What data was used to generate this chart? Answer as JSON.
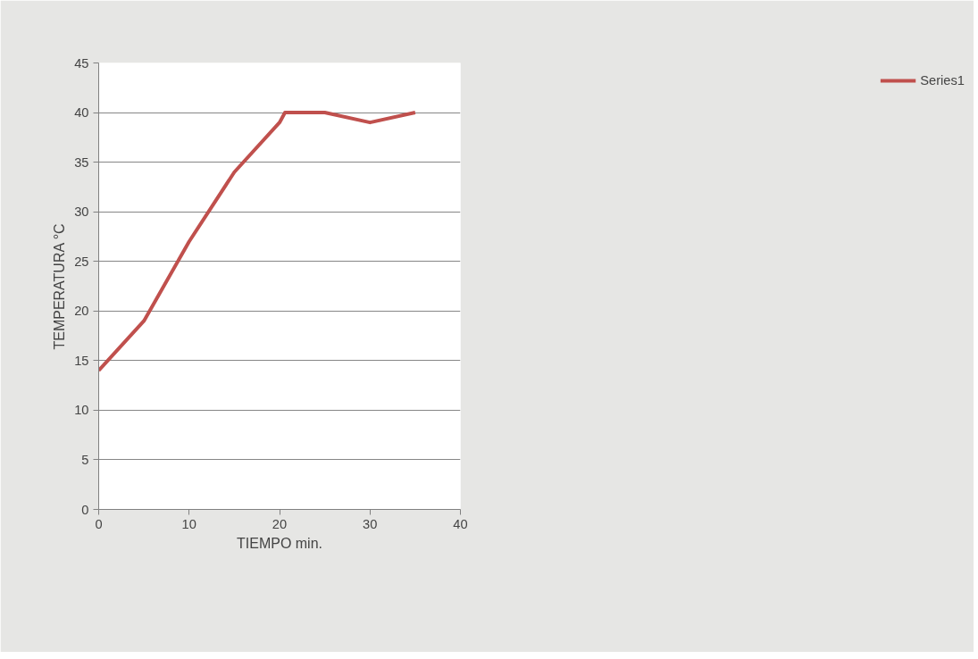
{
  "chart_data": {
    "type": "line",
    "xlabel": "TIEMPO min.",
    "ylabel": "TEMPERATURA °C",
    "series": [
      {
        "name": "Series1",
        "color": "#c0504d",
        "x": [
          0,
          5,
          10,
          15,
          20,
          20.6,
          25,
          30,
          35
        ],
        "values": [
          14,
          19,
          27,
          34,
          39,
          40,
          40,
          39,
          40
        ]
      }
    ],
    "xlim": [
      0,
      40
    ],
    "xticks": [
      0,
      10,
      20,
      30,
      40
    ],
    "ylim": [
      0,
      45
    ],
    "yticks": [
      0,
      5,
      10,
      15,
      20,
      25,
      30,
      35,
      40,
      45
    ],
    "grid": "y",
    "legend": "right",
    "marker": "none",
    "line_style": "solid"
  }
}
